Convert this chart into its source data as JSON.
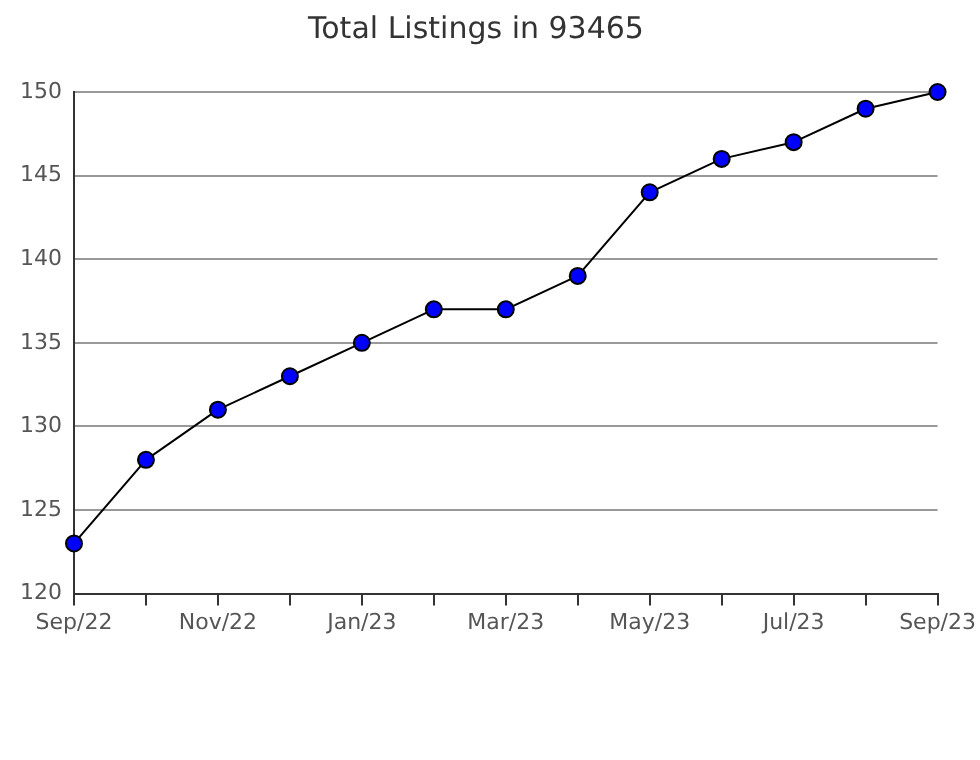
{
  "chart_data": {
    "type": "line",
    "title": "Total Listings in 93465",
    "categories": [
      "Sep/22",
      null,
      "Nov/22",
      null,
      "Jan/23",
      null,
      "Mar/23",
      null,
      "May/23",
      null,
      "Jul/23",
      null,
      "Sep/23"
    ],
    "series": [
      {
        "color": "#0000ff",
        "values": [
          123,
          128,
          131,
          133,
          135,
          137,
          137,
          139,
          144,
          146,
          147,
          149,
          150
        ]
      }
    ],
    "ylim": [
      120,
      150
    ],
    "yticks": [
      120,
      125,
      130,
      135,
      140,
      145,
      150
    ],
    "grid": "y",
    "legend": false,
    "marker": "circle",
    "line_style": "solid"
  }
}
